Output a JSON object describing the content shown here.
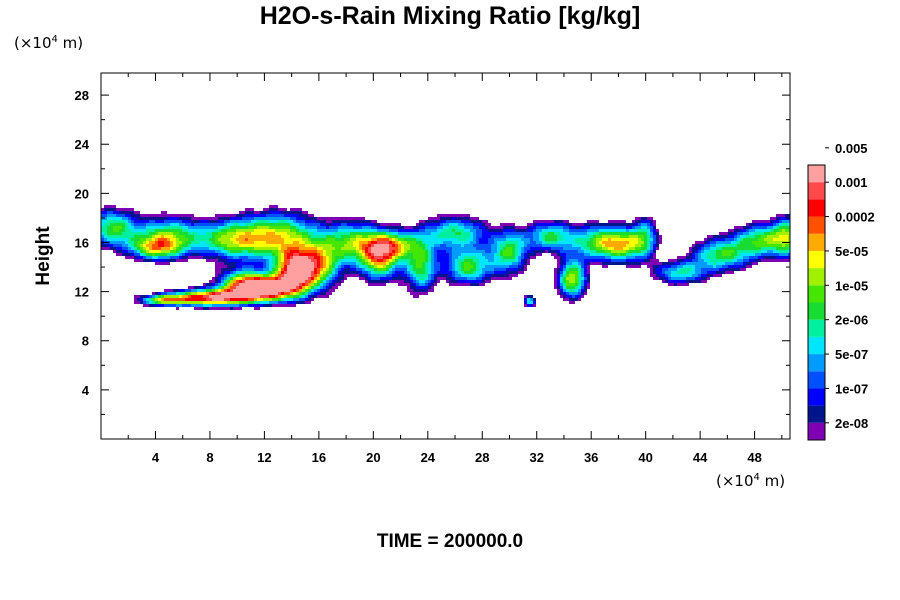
{
  "chart_data": {
    "type": "heatmap",
    "title": "H2O-s-Rain Mixing Ratio [kg/kg]",
    "ylabel": "Height",
    "x_unit": {
      "prefix": "(×10",
      "exp": "4",
      "suffix": " m)"
    },
    "y_unit": {
      "prefix": "(×10",
      "exp": "4",
      "suffix": " m)"
    },
    "xlim": [
      0,
      50.6
    ],
    "ylim": [
      0,
      29.8
    ],
    "xticks": [
      4,
      8,
      12,
      16,
      20,
      24,
      28,
      32,
      36,
      40,
      44,
      48
    ],
    "yticks": [
      4,
      8,
      12,
      16,
      20,
      24,
      28
    ],
    "colorbar": {
      "colors": [
        "#7f00b2",
        "#00148c",
        "#0000ff",
        "#0050ff",
        "#009bff",
        "#00e6ff",
        "#00f0a0",
        "#19dc32",
        "#46e600",
        "#a0f000",
        "#ffff00",
        "#ffaa00",
        "#ff5000",
        "#ff0000",
        "#ff4a4a",
        "#ffa0a0"
      ],
      "labels": [
        "2e-08",
        "1e-07",
        "5e-07",
        "2e-06",
        "1e-05",
        "5e-05",
        "0.0002",
        "0.001",
        "0.005"
      ]
    },
    "features": [
      {
        "x": 0.8,
        "y": 17.2,
        "sx": 1.8,
        "sy": 1.6,
        "a": 1.0
      },
      {
        "x": 5.0,
        "y": 16.6,
        "sx": 2.6,
        "sy": 1.6,
        "a": 1.0
      },
      {
        "x": 9.5,
        "y": 16.2,
        "sx": 2.4,
        "sy": 1.6,
        "a": 0.95
      },
      {
        "x": 4.0,
        "y": 15.5,
        "sx": 2.0,
        "sy": 1.0,
        "a": 0.9
      },
      {
        "x": 13.0,
        "y": 16.5,
        "sx": 3.0,
        "sy": 2.0,
        "a": 1.2
      },
      {
        "x": 14.2,
        "y": 13.5,
        "sx": 1.4,
        "sy": 1.8,
        "a": 1.6
      },
      {
        "x": 12.2,
        "y": 12.2,
        "sx": 2.0,
        "sy": 1.0,
        "a": 1.5
      },
      {
        "x": 8.0,
        "y": 11.5,
        "sx": 3.0,
        "sy": 0.7,
        "a": 1.65
      },
      {
        "x": 4.5,
        "y": 11.3,
        "sx": 1.8,
        "sy": 0.45,
        "a": 1.0
      },
      {
        "x": 10.5,
        "y": 12.6,
        "sx": 2.0,
        "sy": 1.2,
        "a": 1.2
      },
      {
        "x": 16.0,
        "y": 14.0,
        "sx": 1.6,
        "sy": 2.0,
        "a": 1.1
      },
      {
        "x": 18.5,
        "y": 16.0,
        "sx": 2.2,
        "sy": 1.8,
        "a": 1.0
      },
      {
        "x": 20.5,
        "y": 14.5,
        "sx": 1.5,
        "sy": 1.8,
        "a": 1.1
      },
      {
        "x": 21.5,
        "y": 15.8,
        "sx": 1.8,
        "sy": 1.2,
        "a": 0.95
      },
      {
        "x": 23.5,
        "y": 14.0,
        "sx": 1.2,
        "sy": 2.2,
        "a": 1.0
      },
      {
        "x": 26.0,
        "y": 16.8,
        "sx": 2.5,
        "sy": 1.4,
        "a": 0.95
      },
      {
        "x": 27.0,
        "y": 14.0,
        "sx": 1.8,
        "sy": 1.5,
        "a": 1.05
      },
      {
        "x": 30.0,
        "y": 15.2,
        "sx": 1.4,
        "sy": 1.8,
        "a": 1.0
      },
      {
        "x": 31.5,
        "y": 11.2,
        "sx": 0.5,
        "sy": 0.5,
        "a": 0.9
      },
      {
        "x": 33.0,
        "y": 16.5,
        "sx": 1.8,
        "sy": 1.3,
        "a": 0.95
      },
      {
        "x": 34.6,
        "y": 13.0,
        "sx": 1.1,
        "sy": 1.6,
        "a": 1.25
      },
      {
        "x": 36.5,
        "y": 16.0,
        "sx": 2.0,
        "sy": 1.5,
        "a": 1.0
      },
      {
        "x": 38.5,
        "y": 15.8,
        "sx": 1.6,
        "sy": 1.4,
        "a": 0.95
      },
      {
        "x": 40.0,
        "y": 16.5,
        "sx": 1.0,
        "sy": 1.8,
        "a": 0.7
      },
      {
        "x": 42.5,
        "y": 13.5,
        "sx": 2.0,
        "sy": 1.0,
        "a": 0.85
      },
      {
        "x": 45.5,
        "y": 15.0,
        "sx": 2.2,
        "sy": 1.4,
        "a": 1.0
      },
      {
        "x": 48.5,
        "y": 16.2,
        "sx": 2.0,
        "sy": 1.4,
        "a": 1.0
      },
      {
        "x": 50.5,
        "y": 16.5,
        "sx": 1.2,
        "sy": 1.8,
        "a": 0.9
      }
    ]
  },
  "footer": "TIME = 200000.0"
}
